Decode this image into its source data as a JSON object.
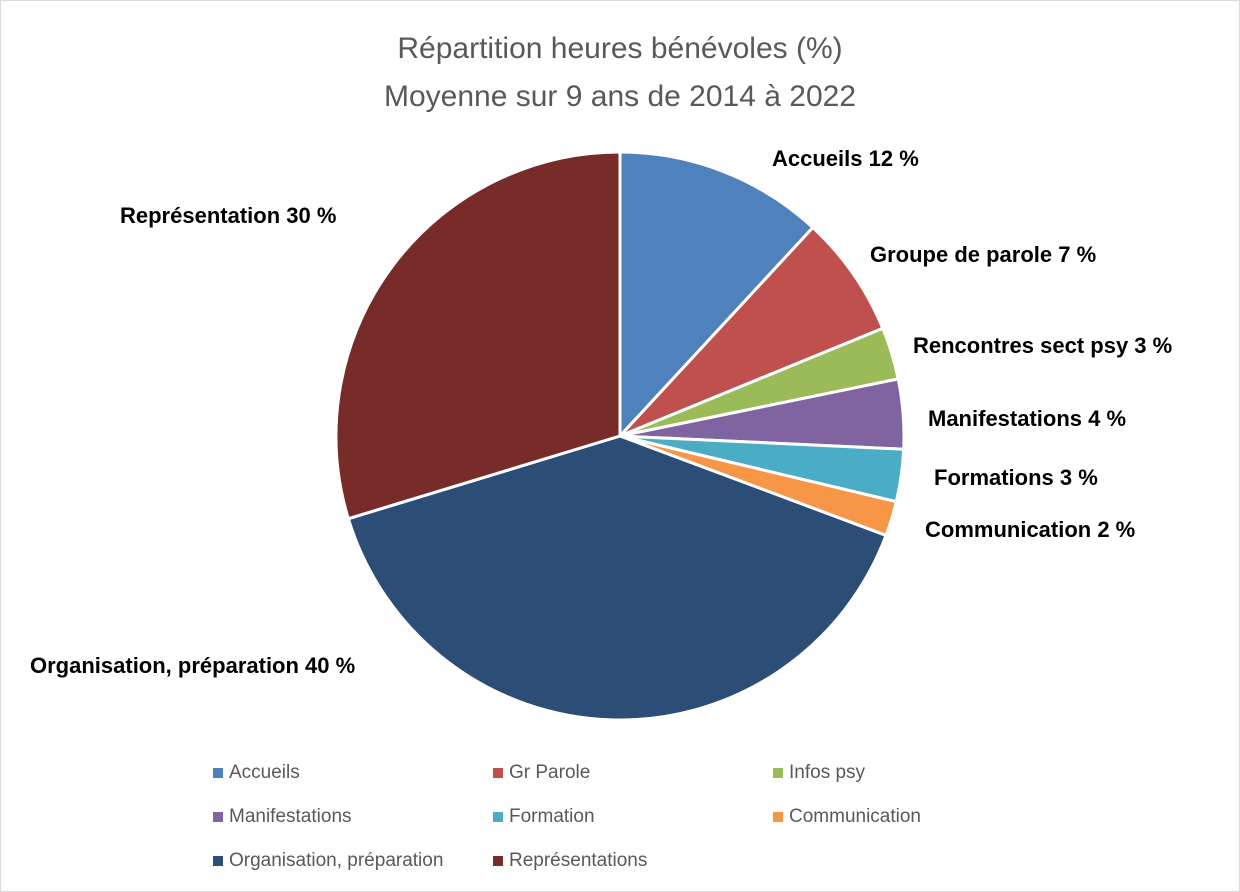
{
  "chart_data": {
    "type": "pie",
    "title": "Répartition heures bénévoles (%)",
    "subtitle": "Moyenne sur 9 ans de 2014 à 2022",
    "categories": [
      "Accueils",
      "Gr Parole",
      "Infos psy",
      "Manifestations",
      "Formation",
      "Communication",
      "Organisation, préparation",
      "Représentations"
    ],
    "values": [
      12,
      7,
      3,
      4,
      3,
      2,
      40,
      30
    ],
    "value_labels": [
      "Accueils 12 %",
      "Groupe de parole 7 %",
      "Rencontres sect psy 3 %",
      "Manifestations 4 %",
      "Formations 3 %",
      "Communication 2 %",
      "Organisation, préparation 40 %",
      "Représentation 30 %"
    ],
    "colors": [
      "#4f81bd",
      "#c0504d",
      "#9bbb59",
      "#8064a2",
      "#4bacc6",
      "#f79646",
      "#2c4d75",
      "#772c2a"
    ],
    "legend": "bottom"
  }
}
